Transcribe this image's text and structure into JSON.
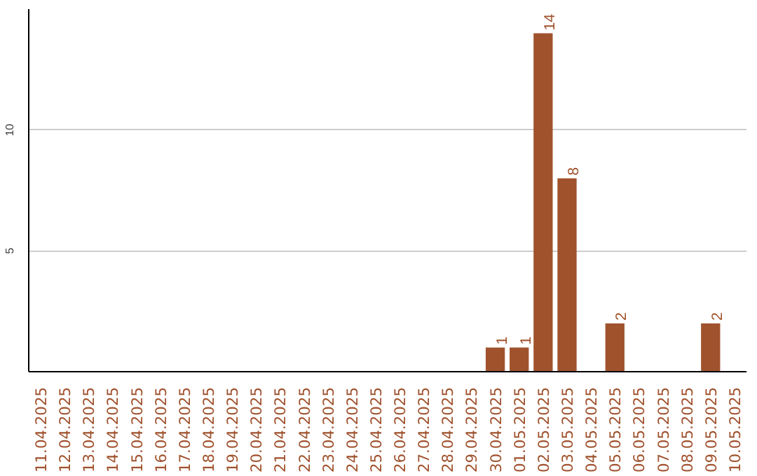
{
  "chart_data": {
    "type": "bar",
    "categories": [
      "11.04.2025",
      "12.04.2025",
      "13.04.2025",
      "14.04.2025",
      "15.04.2025",
      "16.04.2025",
      "17.04.2025",
      "18.04.2025",
      "19.04.2025",
      "20.04.2025",
      "21.04.2025",
      "22.04.2025",
      "23.04.2025",
      "24.04.2025",
      "25.04.2025",
      "26.04.2025",
      "27.04.2025",
      "28.04.2025",
      "29.04.2025",
      "30.04.2025",
      "01.05.2025",
      "02.05.2025",
      "03.05.2025",
      "04.05.2025",
      "05.05.2025",
      "06.05.2025",
      "07.05.2025",
      "08.05.2025",
      "09.05.2025",
      "10.05.2025"
    ],
    "values": [
      0,
      0,
      0,
      0,
      0,
      0,
      0,
      0,
      0,
      0,
      0,
      0,
      0,
      0,
      0,
      0,
      0,
      0,
      0,
      1,
      1,
      14,
      8,
      0,
      2,
      0,
      0,
      0,
      2,
      0
    ],
    "value_labels": [
      null,
      null,
      null,
      null,
      null,
      null,
      null,
      null,
      null,
      null,
      null,
      null,
      null,
      null,
      null,
      null,
      null,
      null,
      null,
      "1",
      "1",
      "14",
      "8",
      null,
      "2",
      null,
      null,
      null,
      "2",
      null
    ],
    "color": "#a0522d",
    "ylim": [
      0,
      15
    ],
    "yticks": [
      5,
      10
    ],
    "grid": "y"
  }
}
